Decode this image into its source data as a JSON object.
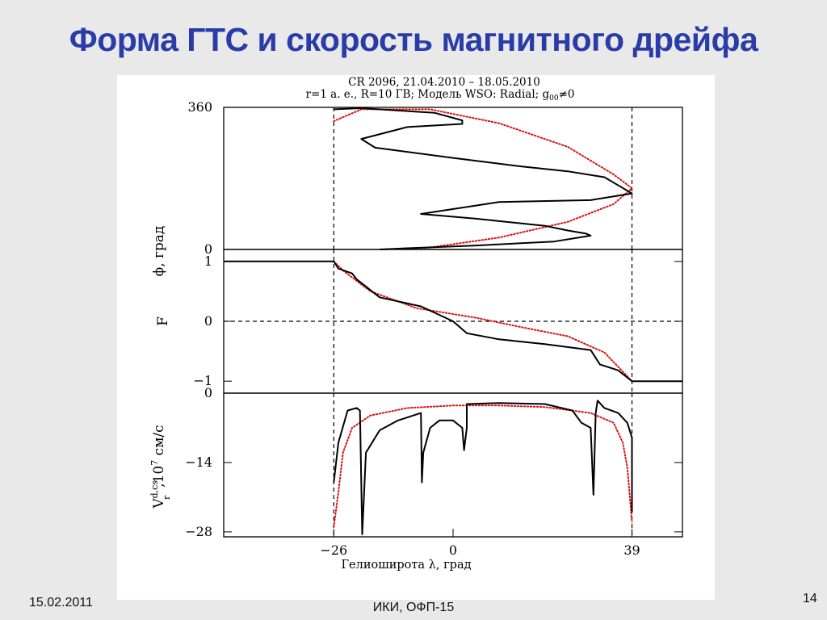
{
  "slide": {
    "title": "Форма ГТС и скорость магнитного дрейфа",
    "footer_date": "15.02.2011",
    "footer_center": "ИКИ, ОФП-15",
    "slide_number": "14"
  },
  "chart_data": {
    "type": "line",
    "title_line1": "CR 2096, 21.04.2010 – 18.05.2010",
    "title_line2_prefix": "r=1 а. е., R=10 ГВ;  Модель WSO: Radial; g",
    "title_line2_sub": "00",
    "title_line2_suffix": "≠0",
    "xlabel": "Гелиоширота λ, град",
    "xlim": [
      -50,
      50
    ],
    "xticks": [
      "−26",
      "0",
      "39"
    ],
    "xtick_values": [
      -26,
      0,
      39
    ],
    "vlines": [
      -26,
      39
    ],
    "series_colors": {
      "black": "#000000",
      "red": "#dd1111"
    },
    "panels": [
      {
        "id": "phi",
        "ylabel": "ϕ, град",
        "ylim": [
          0,
          360
        ],
        "yticks": [
          "360",
          "0"
        ],
        "ytick_values": [
          360,
          0
        ],
        "black_points": [
          [
            -26,
            355
          ],
          [
            -20,
            358
          ],
          [
            -4,
            346
          ],
          [
            2,
            327
          ],
          [
            2,
            318
          ],
          [
            -10,
            310
          ],
          [
            -20,
            280
          ],
          [
            -17,
            258
          ],
          [
            0,
            232
          ],
          [
            15,
            210
          ],
          [
            25,
            198
          ],
          [
            33,
            183
          ],
          [
            39,
            142
          ],
          [
            30,
            125
          ],
          [
            10,
            120
          ],
          [
            -7,
            90
          ],
          [
            5,
            78
          ],
          [
            20,
            60
          ],
          [
            25,
            48
          ],
          [
            29,
            40
          ],
          [
            30,
            35
          ],
          [
            22,
            20
          ],
          [
            5,
            10
          ],
          [
            -10,
            3
          ],
          [
            -16,
            0
          ]
        ],
        "red_points": [
          [
            -26,
            325
          ],
          [
            -20,
            355
          ],
          [
            -5,
            355
          ],
          [
            10,
            320
          ],
          [
            25,
            260
          ],
          [
            35,
            190
          ],
          [
            39,
            155
          ],
          [
            35,
            115
          ],
          [
            25,
            70
          ],
          [
            10,
            30
          ],
          [
            -5,
            5
          ],
          [
            -15,
            0
          ]
        ]
      },
      {
        "id": "F",
        "ylabel": "F",
        "ylim": [
          -1.2,
          1.2
        ],
        "yticks": [
          "1",
          "0",
          "−1"
        ],
        "ytick_values": [
          1,
          0,
          -1
        ],
        "hline": 0,
        "black_points": [
          [
            -50,
            1
          ],
          [
            -26,
            1
          ],
          [
            -25,
            0.88
          ],
          [
            -22,
            0.8
          ],
          [
            -21,
            0.7
          ],
          [
            -16,
            0.4
          ],
          [
            -7,
            0.25
          ],
          [
            0,
            0.0
          ],
          [
            3,
            -0.2
          ],
          [
            10,
            -0.3
          ],
          [
            20,
            -0.38
          ],
          [
            30,
            -0.48
          ],
          [
            32,
            -0.72
          ],
          [
            36,
            -0.82
          ],
          [
            39,
            -1
          ],
          [
            50,
            -1
          ]
        ],
        "red_points": [
          [
            -26,
            1
          ],
          [
            -24,
            0.85
          ],
          [
            -18,
            0.5
          ],
          [
            -8,
            0.22
          ],
          [
            5,
            0.06
          ],
          [
            15,
            -0.1
          ],
          [
            25,
            -0.25
          ],
          [
            33,
            -0.52
          ],
          [
            39,
            -1
          ]
        ]
      },
      {
        "id": "V",
        "ylabel": "V",
        "ylabel_sup": "d,cs",
        "ylabel_sub": "r",
        "ylabel_rest": ",10",
        "ylabel_pow": "7",
        "ylabel_unit": " см/с",
        "ylim": [
          -29,
          0
        ],
        "yticks": [
          "0",
          "−14",
          "−28"
        ],
        "ytick_values": [
          0,
          -14,
          -28
        ],
        "black_points": [
          [
            -26,
            -18
          ],
          [
            -25,
            -10
          ],
          [
            -23,
            -3.5
          ],
          [
            -21,
            -3
          ],
          [
            -20.3,
            -3.5
          ],
          [
            -19.8,
            -28.5
          ],
          [
            -19,
            -12
          ],
          [
            -16,
            -7.5
          ],
          [
            -12,
            -5.5
          ],
          [
            -7,
            -4
          ],
          [
            -6.8,
            -18
          ],
          [
            -6.5,
            -12
          ],
          [
            -5,
            -7
          ],
          [
            -3,
            -5.5
          ],
          [
            0,
            -5.5
          ],
          [
            2,
            -7
          ],
          [
            2.4,
            -11.5
          ],
          [
            3,
            -7
          ],
          [
            3,
            -2.2
          ],
          [
            10,
            -2
          ],
          [
            20,
            -2.2
          ],
          [
            26,
            -3.5
          ],
          [
            28,
            -6
          ],
          [
            30,
            -7
          ],
          [
            30.6,
            -20.5
          ],
          [
            31.1,
            -4
          ],
          [
            31.5,
            -1.5
          ],
          [
            33,
            -3
          ],
          [
            36,
            -4
          ],
          [
            38,
            -6
          ],
          [
            39,
            -9
          ],
          [
            39,
            -24
          ]
        ],
        "red_points": [
          [
            -26,
            -27
          ],
          [
            -25,
            -20
          ],
          [
            -24,
            -12
          ],
          [
            -22,
            -7
          ],
          [
            -18,
            -4.5
          ],
          [
            -10,
            -3
          ],
          [
            0,
            -2.5
          ],
          [
            10,
            -2.5
          ],
          [
            20,
            -2.8
          ],
          [
            30,
            -4
          ],
          [
            35,
            -6
          ],
          [
            37,
            -10
          ],
          [
            38,
            -15
          ],
          [
            39,
            -26
          ]
        ]
      }
    ]
  }
}
